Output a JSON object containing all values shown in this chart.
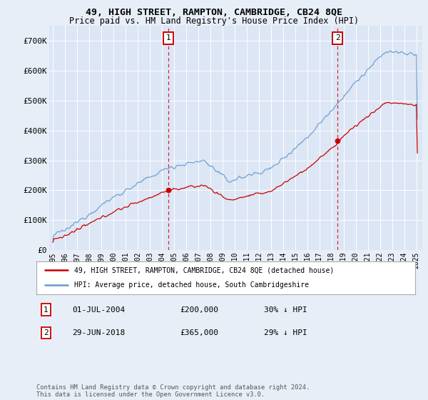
{
  "title": "49, HIGH STREET, RAMPTON, CAMBRIDGE, CB24 8QE",
  "subtitle": "Price paid vs. HM Land Registry's House Price Index (HPI)",
  "legend_line1": "49, HIGH STREET, RAMPTON, CAMBRIDGE, CB24 8QE (detached house)",
  "legend_line2": "HPI: Average price, detached house, South Cambridgeshire",
  "footnote": "Contains HM Land Registry data © Crown copyright and database right 2024.\nThis data is licensed under the Open Government Licence v3.0.",
  "sale1_date": "01-JUL-2004",
  "sale1_price": 200000,
  "sale1_note": "30% ↓ HPI",
  "sale2_date": "29-JUN-2018",
  "sale2_price": 365000,
  "sale2_note": "29% ↓ HPI",
  "ylim": [
    0,
    750000
  ],
  "yticks": [
    0,
    100000,
    200000,
    300000,
    400000,
    500000,
    600000,
    700000
  ],
  "ytick_labels": [
    "£0",
    "£100K",
    "£200K",
    "£300K",
    "£400K",
    "£500K",
    "£600K",
    "£700K"
  ],
  "hpi_color": "#6699cc",
  "price_color": "#cc0000",
  "background_color": "#e8eef7",
  "plot_bg": "#dce6f5",
  "grid_color": "#ffffff",
  "xmin": 1994.7,
  "xmax": 2025.5
}
